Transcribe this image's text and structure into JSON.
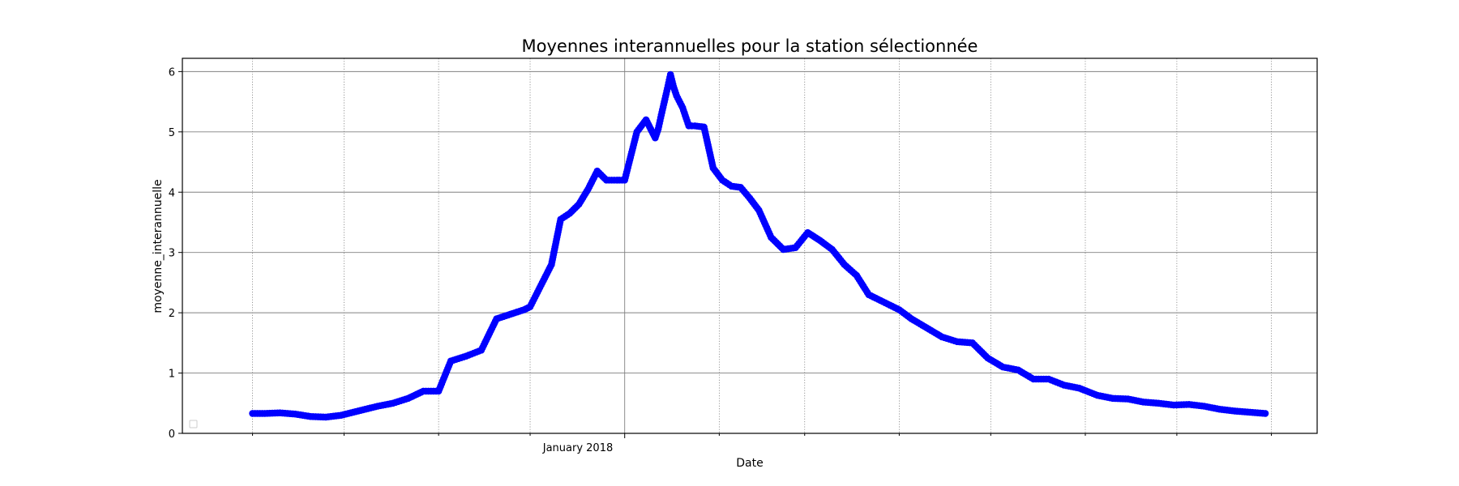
{
  "chart_data": {
    "type": "line",
    "title": "Moyennes interannuelles pour la station sélectionnée",
    "xlabel": "Date",
    "ylabel": "moyenne_interannuelle",
    "x_major_tick": "January 2018",
    "yticks": [
      0,
      1,
      2,
      3,
      4,
      5,
      6
    ],
    "ylim": [
      0,
      6.22
    ],
    "xlim": [
      "2017-08-09",
      "2018-08-16"
    ],
    "grid": true,
    "legend": {
      "placement": "lower-left",
      "entries": []
    },
    "series": [
      {
        "color": "#0000ff",
        "marker": "circle",
        "x": [
          "2017-09-01",
          "2017-09-05",
          "2017-09-10",
          "2017-09-15",
          "2017-09-20",
          "2017-09-25",
          "2017-09-30",
          "2017-10-04",
          "2017-10-08",
          "2017-10-12",
          "2017-10-17",
          "2017-10-22",
          "2017-10-27",
          "2017-11-01",
          "2017-11-03",
          "2017-11-05",
          "2017-11-10",
          "2017-11-15",
          "2017-11-20",
          "2017-11-23",
          "2017-11-26",
          "2017-11-29",
          "2017-12-01",
          "2017-12-03",
          "2017-12-05",
          "2017-12-08",
          "2017-12-11",
          "2017-12-14",
          "2017-12-17",
          "2017-12-20",
          "2017-12-23",
          "2017-12-26",
          "2018-01-01",
          "2018-01-05",
          "2018-01-08",
          "2018-01-11",
          "2018-01-12",
          "2018-01-13",
          "2018-01-14",
          "2018-01-15",
          "2018-01-16",
          "2018-01-17",
          "2018-01-18",
          "2018-01-20",
          "2018-01-22",
          "2018-01-24",
          "2018-01-27",
          "2018-01-30",
          "2018-02-02",
          "2018-02-05",
          "2018-02-08",
          "2018-02-11",
          "2018-02-14",
          "2018-02-18",
          "2018-02-22",
          "2018-02-26",
          "2018-03-02",
          "2018-03-06",
          "2018-03-10",
          "2018-03-14",
          "2018-03-18",
          "2018-03-22",
          "2018-04-01",
          "2018-04-05",
          "2018-04-10",
          "2018-04-15",
          "2018-04-20",
          "2018-04-25",
          "2018-04-30",
          "2018-05-05",
          "2018-05-10",
          "2018-05-15",
          "2018-05-20",
          "2018-05-25",
          "2018-05-30",
          "2018-06-05",
          "2018-06-10",
          "2018-06-15",
          "2018-06-20",
          "2018-06-25",
          "2018-06-30",
          "2018-07-05",
          "2018-07-10",
          "2018-07-15",
          "2018-07-20",
          "2018-07-25",
          "2018-07-30"
        ],
        "values": [
          0.33,
          0.33,
          0.34,
          0.32,
          0.28,
          0.27,
          0.3,
          0.35,
          0.4,
          0.45,
          0.5,
          0.58,
          0.7,
          0.7,
          0.95,
          1.2,
          1.28,
          1.38,
          1.9,
          1.95,
          2.0,
          2.05,
          2.1,
          2.3,
          2.5,
          2.8,
          3.55,
          3.65,
          3.8,
          4.05,
          4.35,
          4.2,
          4.2,
          5.0,
          5.2,
          4.9,
          5.05,
          5.28,
          5.5,
          5.72,
          5.95,
          5.75,
          5.6,
          5.4,
          5.1,
          5.1,
          5.08,
          4.4,
          4.2,
          4.1,
          4.08,
          3.9,
          3.7,
          3.25,
          3.05,
          3.08,
          3.33,
          3.2,
          3.05,
          2.8,
          2.62,
          2.3,
          2.05,
          1.9,
          1.75,
          1.6,
          1.52,
          1.5,
          1.25,
          1.1,
          1.05,
          0.9,
          0.9,
          0.8,
          0.75,
          0.63,
          0.58,
          0.57,
          0.52,
          0.5,
          0.47,
          0.48,
          0.45,
          0.4,
          0.37,
          0.35,
          0.33
        ]
      }
    ]
  }
}
